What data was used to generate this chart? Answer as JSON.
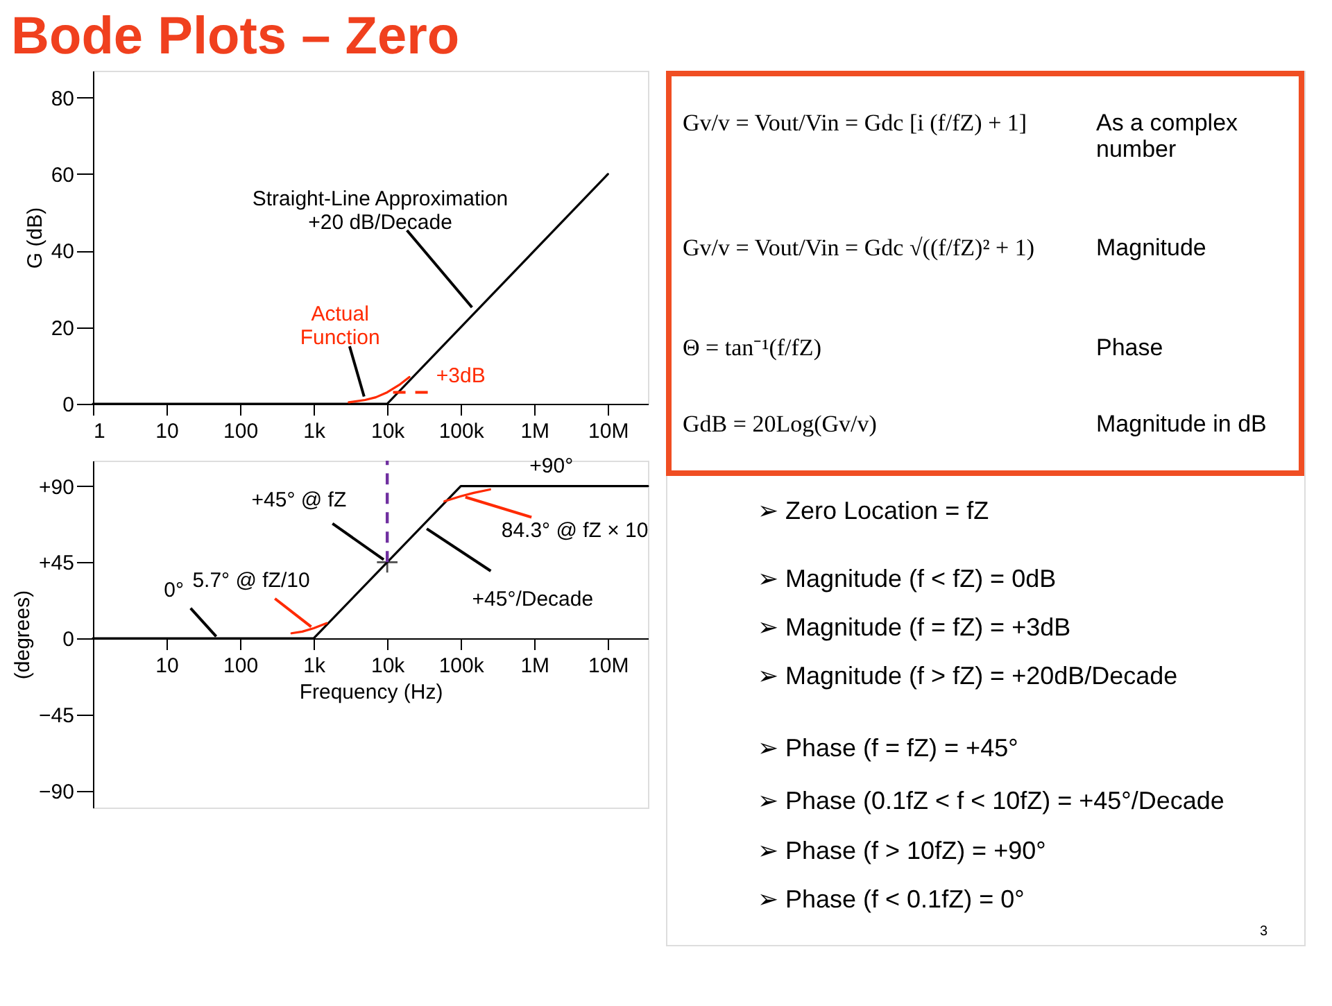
{
  "chart_data": [
    {
      "type": "line",
      "title": "Bode Plots – Zero",
      "ylabel": "G (dB)",
      "xlim": [
        1,
        35000000
      ],
      "ylim": [
        0,
        87
      ],
      "log": "x",
      "grid": false,
      "line_style": "solid",
      "xticks": [
        1,
        10,
        100,
        {
          "value": 1000,
          "label": "1k"
        },
        {
          "value": 10000,
          "label": "10k"
        },
        {
          "value": 100000,
          "label": "100k"
        },
        {
          "value": 1000000,
          "label": "1M"
        },
        {
          "value": 10000000,
          "label": "10M"
        }
      ],
      "yticks": [
        0,
        20,
        40,
        60,
        80
      ],
      "series": [
        {
          "color": "#000000",
          "x": [
            1,
            10000,
            10000000
          ],
          "values": [
            0,
            0,
            60
          ]
        },
        {
          "color": "#ff2a00",
          "x": [
            3000,
            5000,
            7000,
            10000,
            15000,
            20000
          ],
          "values": [
            0.4,
            1.0,
            1.7,
            3.0,
            5.1,
            7.0
          ]
        }
      ],
      "annotations": [
        {
          "text": "Straight-Line Approximation\n+20 dB/Decade",
          "x": 160000,
          "y": 24
        },
        {
          "text": "Actual\nFunction",
          "x": 5000,
          "y": 1
        },
        {
          "text": "+3dB",
          "x": 10000,
          "y": 3
        }
      ]
    },
    {
      "type": "line",
      "xlabel": "Frequency (Hz)",
      "ylabel": "(degrees)",
      "xlim": [
        1,
        35000000
      ],
      "ylim": [
        -100,
        105
      ],
      "log": "x",
      "grid": false,
      "line_style": "solid",
      "xticks": [
        10,
        100,
        {
          "value": 1000,
          "label": "1k"
        },
        {
          "value": 10000,
          "label": "10k"
        },
        {
          "value": 100000,
          "label": "100k"
        },
        {
          "value": 1000000,
          "label": "1M"
        },
        {
          "value": 10000000,
          "label": "10M"
        }
      ],
      "yticks": [
        {
          "value": 90,
          "label": "+90"
        },
        {
          "value": 45,
          "label": "+45"
        },
        0,
        -45,
        -90
      ],
      "series": [
        {
          "color": "#000000",
          "x": [
            1,
            1000,
            100000,
            35000000
          ],
          "values": [
            0,
            0,
            90,
            90
          ]
        },
        {
          "color": "#ff2a00",
          "x": [
            500,
            700,
            1000,
            1500,
            10000,
            60000,
            100000,
            150000,
            250000
          ],
          "values": [
            3,
            4,
            6,
            9,
            null,
            81,
            84,
            86,
            88
          ]
        },
        {
          "type": "scatter",
          "marker": "cross",
          "color": "#000000",
          "x": [
            10000
          ],
          "values": [
            45
          ]
        }
      ],
      "ref_lines": [
        {
          "axis": "x",
          "value": 10000,
          "color": "#7030a0",
          "line_style": "dashed"
        }
      ],
      "annotations": [
        {
          "text": "+90°",
          "x": 1700000,
          "y": 90
        },
        {
          "text": "+45° @ fZ",
          "x": 10000,
          "y": 45
        },
        {
          "text": "84.3° @ fZ × 10",
          "x": 100000,
          "y": 84.3
        },
        {
          "text": "+45°/Decade",
          "x": 30000,
          "y": 66.5
        },
        {
          "text": "5.7° @ fZ/10",
          "x": 1000,
          "y": 5.7
        },
        {
          "text": "0°",
          "x": 50,
          "y": 0
        }
      ]
    },
    {
      "type": "other",
      "annotations": [
        "Gv/v = Vout/Vin = Gdc [i (f/fZ) + 1]",
        "As a complex\nnumber",
        "Gv/v = Vout/Vin = Gdc √((f/fZ)² + 1)",
        "Magnitude",
        "Θ = tan⁻¹(f/fZ)",
        "Phase",
        "GdB = 20Log(Gv/v)",
        "Magnitude in dB",
        "➢   Zero Location = fZ",
        "➢   Magnitude (f  < fZ) = 0dB",
        "➢   Magnitude (f  = fZ) = +3dB",
        "➢   Magnitude (f  > fZ) =  +20dB/Decade",
        "➢   Phase (f  = fZ) = +45°",
        "➢   Phase (0.1fZ < f < 10fZ) = +45°/Decade",
        "➢   Phase (f > 10fZ) = +90°",
        "➢   Phase (f < 0.1fZ) = 0°",
        "3"
      ]
    }
  ]
}
